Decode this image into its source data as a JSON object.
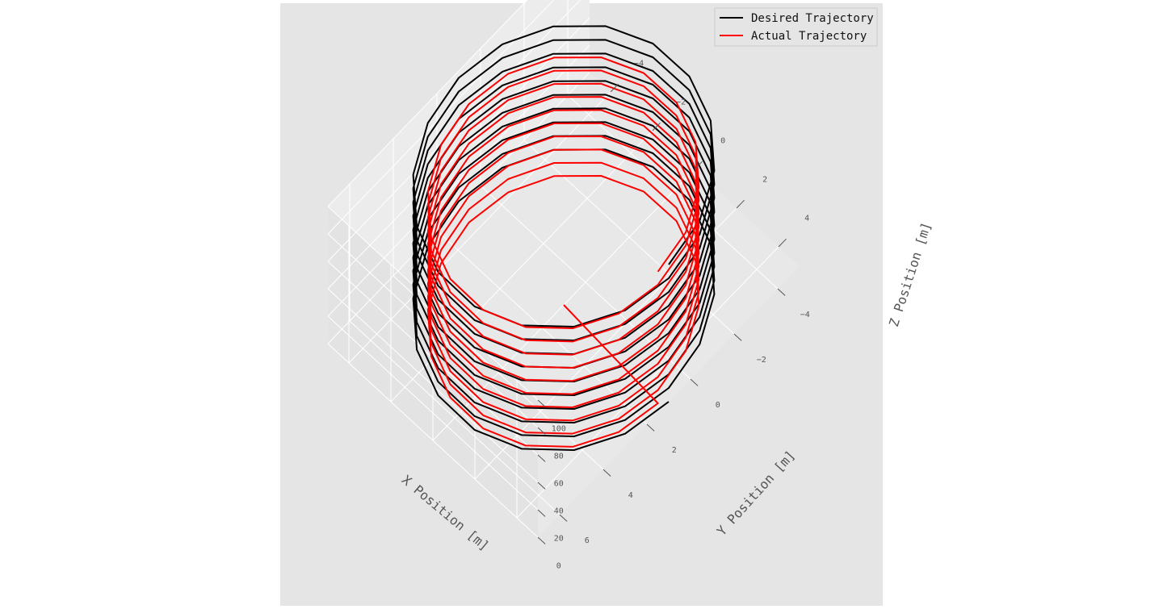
{
  "chart_data": {
    "type": "line3d",
    "title": "",
    "xlabel": "X Position [m]",
    "ylabel": "Y Position [m]",
    "zlabel": "Z Position [m]",
    "xlim": [
      -5,
      5
    ],
    "ylim": [
      -5,
      7
    ],
    "zlim": [
      0,
      100
    ],
    "x_ticks": [
      "−4",
      "−2",
      "0",
      "2",
      "4"
    ],
    "y_ticks": [
      "−4",
      "−2",
      "0",
      "2",
      "4",
      "6"
    ],
    "z_ticks": [
      "0",
      "20",
      "40",
      "60",
      "80",
      "100"
    ],
    "grid": true,
    "legend_position": "top-right",
    "series": [
      {
        "name": "Desired Trajectory",
        "color": "#000000",
        "shape": "helix",
        "center_x": 0.0,
        "center_y": 1.0,
        "radius": 5.0,
        "z_start": 0,
        "z_end": 100,
        "turns": 10,
        "points_per_turn": 18
      },
      {
        "name": "Actual Trajectory",
        "color": "#ff0000",
        "shape": "helix",
        "start": [
          0,
          1.0,
          0
        ],
        "center_x": 0.4,
        "center_y": 1.4,
        "radius": 4.5,
        "z_start": 4,
        "z_end": 100,
        "turns": 10,
        "points_per_turn": 18
      }
    ]
  }
}
